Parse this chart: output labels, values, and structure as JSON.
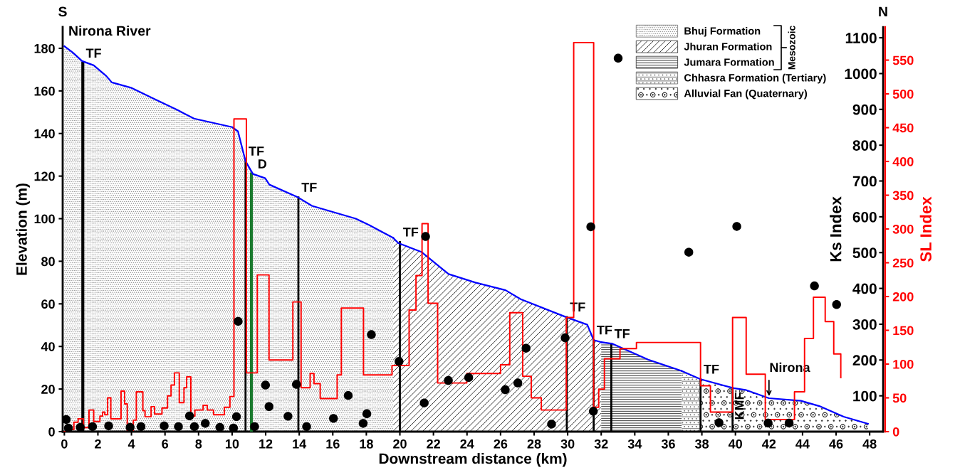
{
  "chart_data": {
    "type": "area",
    "xlabel": "Downstream distance (km)",
    "ylabel": "Elevation (m)",
    "y2label": "Ks Index",
    "y3label": "SL Index",
    "xlim": [
      -0.1,
      48.8
    ],
    "xticks": [
      0,
      2,
      4,
      6,
      8,
      10,
      12,
      14,
      16,
      18,
      20,
      22,
      24,
      26,
      28,
      30,
      32,
      34,
      36,
      38,
      40,
      42,
      44,
      46,
      48
    ],
    "ylim": [
      0,
      190
    ],
    "yticks": [
      0,
      20,
      40,
      60,
      80,
      100,
      120,
      140,
      160,
      180
    ],
    "y2lim": [
      0,
      1130
    ],
    "y2ticks": [
      100,
      200,
      300,
      400,
      500,
      600,
      700,
      800,
      900,
      1000,
      1100
    ],
    "y3lim": [
      0,
      599
    ],
    "y3ticks": [
      0,
      50,
      100,
      150,
      200,
      250,
      300,
      350,
      400,
      450,
      500,
      550
    ],
    "legend": "top right",
    "series": [
      {
        "name": "Bhuj Formation",
        "color": "#0000ff",
        "x": [
          0,
          0.5,
          1.06,
          1.75,
          2.5,
          2.83,
          3.97,
          5.28,
          6.75,
          7.73,
          10.0,
          10.35,
          10.8,
          11.24,
          11.97,
          12.22,
          13.93,
          14.76,
          17.37,
          18.17,
          19.6
        ],
        "values": [
          181,
          178,
          174,
          172,
          167,
          164,
          161.5,
          156.5,
          151,
          147,
          143,
          141,
          127,
          121,
          119,
          116,
          110,
          106,
          100,
          97,
          91
        ]
      },
      {
        "name": "Jhuran Formation",
        "color": "#0000ff",
        "x": [
          19.6,
          19.9,
          21.3,
          22.9,
          24.5,
          26.3,
          27.2,
          29.9,
          31.17,
          31.55,
          32
        ],
        "values": [
          91,
          88.6,
          84.3,
          74,
          70,
          66.4,
          62.2,
          53.8,
          50.2,
          43,
          42
        ]
      },
      {
        "name": "Jumara Formation",
        "color": "#0000ff",
        "x": [
          32,
          32.65,
          34.8,
          36.8
        ],
        "values": [
          42,
          41.3,
          33.8,
          28.5
        ]
      },
      {
        "name": "Chhasra Formation (Tertiary)",
        "color": "#0000ff",
        "x": [
          36.8,
          37.92
        ],
        "values": [
          28.5,
          24.6
        ]
      },
      {
        "name": "Alluvial Fan (Quaternary)",
        "color": "#0000ff",
        "x": [
          37.92,
          39.9,
          40.6,
          42,
          43.9,
          45,
          46.45,
          47.9
        ],
        "values": [
          24.6,
          20.4,
          19.6,
          15.7,
          14.5,
          12,
          7,
          3.7
        ]
      },
      {
        "type": "line",
        "color": "#000000",
        "x": [
          1.1,
          1.1
        ],
        "values": [
          0,
          173
        ]
      },
      {
        "type": "line",
        "color": "#1a7a2e",
        "x": [
          11.15,
          11.15
        ],
        "values": [
          0,
          121
        ]
      },
      {
        "type": "step",
        "axis": "y3",
        "color": "#ff0000",
        "x": [
          0,
          0.08,
          0.57,
          0.82,
          1.14,
          1.47,
          1.75,
          2.12,
          2.28,
          2.41,
          2.58,
          2.77,
          3.38,
          3.59,
          3.75,
          4.11,
          4.29,
          4.68,
          4.81,
          5.17,
          5.38,
          5.82,
          6.15,
          6.36,
          6.56,
          6.85,
          7.13,
          7.29,
          7.54,
          7.78,
          8.27,
          8.52,
          8.89,
          9.54,
          9.87,
          10.11,
          10.85,
          11.5,
          12.2,
          13.62,
          14.11,
          14.65,
          14.88,
          15.25,
          16.26,
          16.51,
          17.83,
          19.53,
          20.55,
          20.96,
          21.32,
          21.68,
          22.25,
          23.99,
          26.0,
          26.55,
          27.32,
          27.83,
          28.43,
          29.92,
          30.36,
          31.55,
          31.85,
          32.19,
          33.12,
          34.1,
          37.92,
          38.51,
          39.83,
          40.64,
          41.78,
          43.52,
          44.12,
          44.65,
          45.35,
          45.86,
          46.28
        ],
        "values": [
          0,
          3,
          14,
          19,
          6,
          32,
          15,
          23,
          29,
          25,
          50,
          19,
          60,
          41,
          2,
          17,
          59,
          31,
          22,
          37,
          26,
          35,
          53,
          69,
          87,
          43,
          65,
          81,
          23,
          32,
          39,
          32,
          25,
          36,
          52,
          463,
          87,
          232,
          106,
          192,
          65,
          86,
          71,
          49,
          84,
          183,
          84,
          98,
          180,
          231,
          308,
          190,
          72,
          86,
          99,
          176,
          82,
          50,
          32,
          169,
          576,
          36,
          63,
          108,
          123,
          132,
          68,
          29,
          169,
          85,
          18,
          59,
          138,
          199,
          163,
          115,
          80
        ]
      },
      {
        "type": "scatter",
        "axis": "y2",
        "color": "#000000",
        "marker": "circle",
        "x": [
          0.11,
          0.24,
          0.95,
          1.68,
          2.64,
          3.92,
          4.57,
          5.95,
          6.8,
          7.46,
          7.75,
          8.4,
          9.27,
          10.08,
          10.26,
          10.36,
          11.34,
          11.99,
          12.2,
          13.33,
          13.83,
          14.44,
          16.04,
          16.92,
          17.81,
          18.03,
          18.3,
          19.95,
          21.45,
          21.53,
          22.89,
          24.1,
          26.28,
          27.03,
          27.52,
          29.04,
          29.85,
          31.38,
          31.53,
          33.01,
          37.22,
          39.02,
          40.08,
          41.95,
          43.2,
          44.71,
          46.03
        ],
        "values": [
          34,
          10,
          12,
          14,
          16,
          12,
          14,
          16,
          14,
          44,
          14,
          23,
          12,
          10,
          42,
          308,
          14,
          130,
          70,
          43,
          132,
          14,
          37,
          101,
          23,
          50,
          271,
          196,
          80,
          545,
          143,
          151,
          117,
          136,
          233,
          21,
          262,
          572,
          57,
          1043,
          501,
          25,
          573,
          24,
          24,
          407,
          355
        ]
      }
    ],
    "annotations": [
      "S",
      "Nirona River",
      "N",
      "Mesozoic",
      {
        "text": "TF",
        "x": 1.1,
        "y": 173
      },
      {
        "text": "TF",
        "x": 10.8,
        "y": 127
      },
      {
        "text": "D",
        "x": 11.15,
        "y": 121
      },
      {
        "text": "TF",
        "x": 13.95,
        "y": 110
      },
      {
        "text": "TF",
        "x": 20,
        "y": 89
      },
      {
        "text": "TF",
        "x": 29.95,
        "y": 53.8
      },
      {
        "text": "TF",
        "x": 31.55,
        "y": 43
      },
      {
        "text": "TF",
        "x": 32.6,
        "y": 41.3
      },
      {
        "text": "TF",
        "x": 37.92,
        "y": 24.6
      },
      {
        "text": "KMF",
        "x": 39.83,
        "y": 20.4
      },
      {
        "text": "Nirona",
        "x": 42,
        "y": 15.7
      }
    ]
  }
}
